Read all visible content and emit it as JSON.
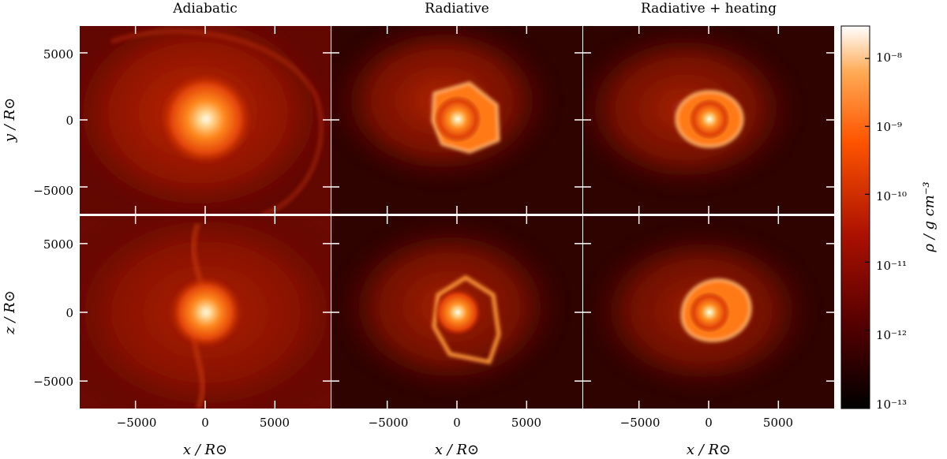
{
  "chart_data": {
    "type": "heatmap",
    "panel_titles": [
      "Adiabatic",
      "Radiative",
      "Radiative + heating"
    ],
    "rows": [
      {
        "plane": "x-y",
        "ylabel": "y / R⊙"
      },
      {
        "plane": "x-z",
        "ylabel": "z / R⊙"
      }
    ],
    "xlabel": "x / R⊙",
    "xlim": [
      -9000,
      9000
    ],
    "ylim": [
      -7000,
      7000
    ],
    "x_ticks": [
      -5000,
      0,
      5000
    ],
    "y_ticks": [
      5000,
      0,
      -5000
    ],
    "x_tick_labels": [
      "−5000",
      "0",
      "5000"
    ],
    "y_tick_labels": [
      "5000",
      "0",
      "−5000"
    ],
    "colorbar": {
      "label": "ρ / g cm⁻³",
      "scale": "log",
      "range": [
        7e-14,
        3e-08
      ],
      "ticks": [
        1e-08,
        1e-09,
        1e-10,
        1e-11,
        1e-12,
        1e-13
      ],
      "tick_labels": [
        "10⁻⁸",
        "10⁻⁹",
        "10⁻¹⁰",
        "10⁻¹¹",
        "10⁻¹²",
        "10⁻¹³"
      ],
      "colormap": "gist_heat",
      "colors": [
        "#000000",
        "#550000",
        "#aa1000",
        "#ff5500",
        "#ffaa55",
        "#ffffff"
      ]
    }
  }
}
